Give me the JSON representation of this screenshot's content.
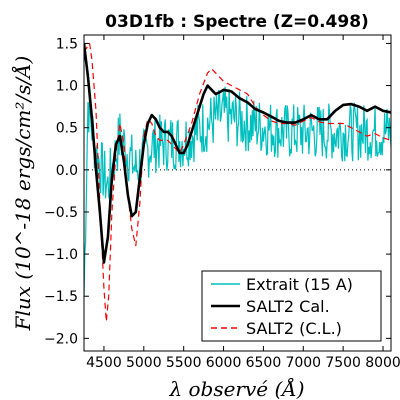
{
  "chart_data": {
    "type": "line",
    "title": "03D1fb : Spectre (Z=0.498)",
    "xlabel": "λ observé (Å)",
    "ylabel": "Flux (10^-18 ergs/cm²/s/Å)",
    "xlim": [
      4250,
      8100
    ],
    "ylim": [
      -2.15,
      1.6
    ],
    "xticks": [
      4500,
      5000,
      5500,
      6000,
      6500,
      7000,
      7500,
      8000
    ],
    "xtick_labels": [
      "4500",
      "5000",
      "5500",
      "6000",
      "6500",
      "7000",
      "7500",
      "8000"
    ],
    "yticks": [
      -2.0,
      -1.5,
      -1.0,
      -0.5,
      0.0,
      0.5,
      1.0,
      1.5
    ],
    "ytick_labels": [
      "−2.0",
      "−1.5",
      "−1.0",
      "−0.5",
      "0.0",
      "0.5",
      "1.0",
      "1.5"
    ],
    "zero_line": true,
    "legend": {
      "placement": "lower-right"
    },
    "series": [
      {
        "name": "Extrait (15 A)",
        "color": "#00bfbf",
        "style": "solid",
        "x_start": 4250,
        "x_end": 8100,
        "noise_amplitude": 0.35,
        "envelope": [
          [
            4250,
            -1.5
          ],
          [
            4300,
            0.8
          ],
          [
            4400,
            0.2
          ],
          [
            4550,
            -0.2
          ],
          [
            4700,
            0.4
          ],
          [
            4900,
            0.0
          ],
          [
            5100,
            0.3
          ],
          [
            5500,
            0.35
          ],
          [
            5800,
            0.55
          ],
          [
            6000,
            0.65
          ],
          [
            6300,
            0.55
          ],
          [
            6800,
            0.45
          ],
          [
            7200,
            0.45
          ],
          [
            7600,
            0.45
          ],
          [
            8100,
            0.45
          ]
        ],
        "seed": 7
      },
      {
        "name": "SALT2 Cal.",
        "color": "#000000",
        "style": "solid",
        "points": [
          [
            4250,
            1.5
          ],
          [
            4300,
            1.1
          ],
          [
            4350,
            0.6
          ],
          [
            4400,
            0.0
          ],
          [
            4450,
            -0.5
          ],
          [
            4500,
            -1.1
          ],
          [
            4550,
            -0.8
          ],
          [
            4600,
            -0.1
          ],
          [
            4650,
            0.3
          ],
          [
            4700,
            0.4
          ],
          [
            4750,
            0.1
          ],
          [
            4800,
            -0.3
          ],
          [
            4850,
            -0.55
          ],
          [
            4900,
            -0.5
          ],
          [
            4950,
            -0.1
          ],
          [
            5000,
            0.3
          ],
          [
            5050,
            0.55
          ],
          [
            5100,
            0.65
          ],
          [
            5150,
            0.6
          ],
          [
            5200,
            0.5
          ],
          [
            5250,
            0.45
          ],
          [
            5300,
            0.45
          ],
          [
            5350,
            0.4
          ],
          [
            5400,
            0.3
          ],
          [
            5450,
            0.2
          ],
          [
            5500,
            0.2
          ],
          [
            5550,
            0.3
          ],
          [
            5600,
            0.45
          ],
          [
            5650,
            0.6
          ],
          [
            5700,
            0.75
          ],
          [
            5750,
            0.9
          ],
          [
            5800,
            1.0
          ],
          [
            5850,
            0.95
          ],
          [
            5900,
            0.9
          ],
          [
            5950,
            0.92
          ],
          [
            6000,
            0.95
          ],
          [
            6100,
            0.93
          ],
          [
            6200,
            0.85
          ],
          [
            6300,
            0.8
          ],
          [
            6400,
            0.72
          ],
          [
            6500,
            0.68
          ],
          [
            6600,
            0.63
          ],
          [
            6700,
            0.58
          ],
          [
            6800,
            0.56
          ],
          [
            6900,
            0.56
          ],
          [
            7000,
            0.6
          ],
          [
            7100,
            0.65
          ],
          [
            7200,
            0.6
          ],
          [
            7300,
            0.6
          ],
          [
            7400,
            0.7
          ],
          [
            7500,
            0.77
          ],
          [
            7600,
            0.78
          ],
          [
            7700,
            0.75
          ],
          [
            7800,
            0.7
          ],
          [
            7900,
            0.75
          ],
          [
            8000,
            0.7
          ],
          [
            8100,
            0.68
          ]
        ]
      },
      {
        "name": "SALT2 (C.L.)",
        "color": "#ff0000",
        "style": "dashed",
        "points": [
          [
            4250,
            1.4
          ],
          [
            4320,
            1.5
          ],
          [
            4350,
            1.3
          ],
          [
            4400,
            0.7
          ],
          [
            4450,
            -0.4
          ],
          [
            4500,
            -1.4
          ],
          [
            4530,
            -1.8
          ],
          [
            4560,
            -1.5
          ],
          [
            4600,
            -0.5
          ],
          [
            4650,
            0.2
          ],
          [
            4700,
            0.55
          ],
          [
            4750,
            0.3
          ],
          [
            4800,
            -0.3
          ],
          [
            4850,
            -0.7
          ],
          [
            4900,
            -0.9
          ],
          [
            4950,
            -0.4
          ],
          [
            5000,
            0.4
          ],
          [
            5050,
            0.6
          ],
          [
            5100,
            0.55
          ],
          [
            5150,
            0.4
          ],
          [
            5200,
            0.35
          ],
          [
            5300,
            0.35
          ],
          [
            5400,
            0.25
          ],
          [
            5450,
            0.2
          ],
          [
            5500,
            0.3
          ],
          [
            5600,
            0.55
          ],
          [
            5700,
            0.9
          ],
          [
            5800,
            1.15
          ],
          [
            5850,
            1.2
          ],
          [
            5900,
            1.15
          ],
          [
            6000,
            1.05
          ],
          [
            6100,
            1.0
          ],
          [
            6200,
            0.95
          ],
          [
            6300,
            0.9
          ],
          [
            6400,
            0.75
          ],
          [
            6500,
            0.65
          ],
          [
            6600,
            0.58
          ],
          [
            6700,
            0.55
          ],
          [
            6800,
            0.55
          ],
          [
            6900,
            0.53
          ],
          [
            7000,
            0.58
          ],
          [
            7100,
            0.62
          ],
          [
            7200,
            0.57
          ],
          [
            7300,
            0.55
          ],
          [
            7400,
            0.55
          ],
          [
            7500,
            0.55
          ],
          [
            7600,
            0.5
          ],
          [
            7700,
            0.45
          ],
          [
            7800,
            0.4
          ],
          [
            7900,
            0.43
          ],
          [
            8000,
            0.38
          ],
          [
            8100,
            0.35
          ]
        ]
      }
    ]
  }
}
